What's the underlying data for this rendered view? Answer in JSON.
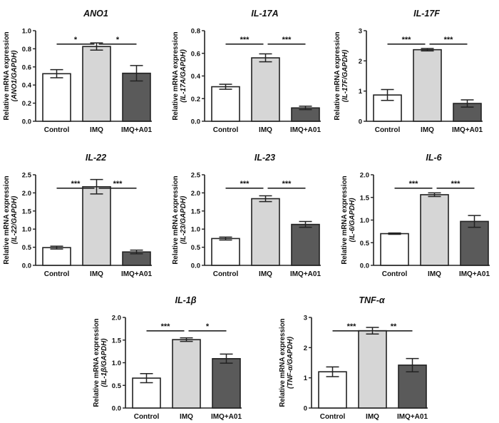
{
  "figure": {
    "categories": [
      "Control",
      "IMQ",
      "IMQ+A01"
    ],
    "bar_colors": [
      "#ffffff",
      "#d6d6d6",
      "#5a5a5a"
    ],
    "ylabel_line1": "Relative mRNA expression"
  },
  "chart_data": [
    {
      "type": "bar",
      "title": "ANO1",
      "ylabel": "Relative mRNA expression (ANO1/GAPDH)",
      "ylabel2": "(ANO1/GAPDH)",
      "categories": [
        "Control",
        "IMQ",
        "IMQ+A01"
      ],
      "values": [
        0.525,
        0.825,
        0.53
      ],
      "errors": [
        0.045,
        0.04,
        0.085
      ],
      "ylim": [
        0,
        1.0
      ],
      "yticks": [
        0.0,
        0.2,
        0.4,
        0.6,
        0.8,
        1.0
      ],
      "tick_labels": [
        "0.0",
        "0.2",
        "0.4",
        "0.6",
        "0.8",
        "1.0"
      ],
      "significance": [
        {
          "pair": [
            "Control",
            "IMQ"
          ],
          "label": "*"
        },
        {
          "pair": [
            "IMQ",
            "IMQ+A01"
          ],
          "label": "*"
        }
      ]
    },
    {
      "type": "bar",
      "title": "IL-17A",
      "ylabel": "Relative mRNA expression (IL-17A/GAPDH)",
      "ylabel2": "(IL-17A/GAPDH)",
      "categories": [
        "Control",
        "IMQ",
        "IMQ+A01"
      ],
      "values": [
        0.305,
        0.56,
        0.118
      ],
      "errors": [
        0.022,
        0.035,
        0.015
      ],
      "ylim": [
        0,
        0.8
      ],
      "yticks": [
        0.0,
        0.2,
        0.4,
        0.6,
        0.8
      ],
      "tick_labels": [
        "0.0",
        "0.2",
        "0.4",
        "0.6",
        "0.8"
      ],
      "significance": [
        {
          "pair": [
            "Control",
            "IMQ"
          ],
          "label": "***"
        },
        {
          "pair": [
            "IMQ",
            "IMQ+A01"
          ],
          "label": "***"
        }
      ]
    },
    {
      "type": "bar",
      "title": "IL-17F",
      "ylabel": "Relative mRNA expression (IL-17F/GAPDH)",
      "ylabel2": "(IL-17F/GAPDH)",
      "categories": [
        "Control",
        "IMQ",
        "IMQ+A01"
      ],
      "values": [
        0.87,
        2.37,
        0.59
      ],
      "errors": [
        0.18,
        0.04,
        0.12
      ],
      "ylim": [
        0,
        3
      ],
      "yticks": [
        0,
        1,
        2,
        3
      ],
      "tick_labels": [
        "0",
        "1",
        "2",
        "3"
      ],
      "significance": [
        {
          "pair": [
            "Control",
            "IMQ"
          ],
          "label": "***"
        },
        {
          "pair": [
            "IMQ",
            "IMQ+A01"
          ],
          "label": "***"
        }
      ]
    },
    {
      "type": "bar",
      "title": "IL-22",
      "ylabel": "Relative mRNA expression (IL-22/GAPDH)",
      "ylabel2": "(IL-22/GAPDH)",
      "categories": [
        "Control",
        "IMQ",
        "IMQ+A01"
      ],
      "values": [
        0.49,
        2.17,
        0.37
      ],
      "errors": [
        0.04,
        0.2,
        0.05
      ],
      "ylim": [
        0,
        2.5
      ],
      "yticks": [
        0.0,
        0.5,
        1.0,
        1.5,
        2.0,
        2.5
      ],
      "tick_labels": [
        "0.0",
        "0.5",
        "1.0",
        "1.5",
        "2.0",
        "2.5"
      ],
      "significance": [
        {
          "pair": [
            "Control",
            "IMQ"
          ],
          "label": "***"
        },
        {
          "pair": [
            "IMQ",
            "IMQ+A01"
          ],
          "label": "***"
        }
      ]
    },
    {
      "type": "bar",
      "title": "IL-23",
      "ylabel": "Relative mRNA expression (IL-23/GAPDH)",
      "ylabel2": "(IL-23/GAPDH)",
      "categories": [
        "Control",
        "IMQ",
        "IMQ+A01"
      ],
      "values": [
        0.74,
        1.84,
        1.13
      ],
      "errors": [
        0.04,
        0.08,
        0.08
      ],
      "ylim": [
        0,
        2.5
      ],
      "yticks": [
        0.0,
        0.5,
        1.0,
        1.5,
        2.0,
        2.5
      ],
      "tick_labels": [
        "0.0",
        "0.5",
        "1.0",
        "1.5",
        "2.0",
        "2.5"
      ],
      "significance": [
        {
          "pair": [
            "Control",
            "IMQ"
          ],
          "label": "***"
        },
        {
          "pair": [
            "IMQ",
            "IMQ+A01"
          ],
          "label": "***"
        }
      ]
    },
    {
      "type": "bar",
      "title": "IL-6",
      "ylabel": "Relative mRNA expression (IL-6/GAPDH)",
      "ylabel2": "(IL-6/GAPDH)",
      "categories": [
        "Control",
        "IMQ",
        "IMQ+A01"
      ],
      "values": [
        0.7,
        1.56,
        0.97
      ],
      "errors": [
        0.015,
        0.04,
        0.13
      ],
      "ylim": [
        0,
        2.0
      ],
      "yticks": [
        0.0,
        0.5,
        1.0,
        1.5,
        2.0
      ],
      "tick_labels": [
        "0.0",
        "0.5",
        "1.0",
        "1.5",
        "2.0"
      ],
      "significance": [
        {
          "pair": [
            "Control",
            "IMQ"
          ],
          "label": "***"
        },
        {
          "pair": [
            "IMQ",
            "IMQ+A01"
          ],
          "label": "***"
        }
      ]
    },
    {
      "type": "bar",
      "title": "IL-1β",
      "ylabel": "Relative mRNA expression (IL-1β/GAPDH)",
      "ylabel2": "(IL-1β/GAPDH)",
      "categories": [
        "Control",
        "IMQ",
        "IMQ+A01"
      ],
      "values": [
        0.66,
        1.51,
        1.09
      ],
      "errors": [
        0.1,
        0.04,
        0.1
      ],
      "ylim": [
        0,
        2.0
      ],
      "yticks": [
        0.0,
        0.5,
        1.0,
        1.5,
        2.0
      ],
      "tick_labels": [
        "0.0",
        "0.5",
        "1.0",
        "1.5",
        "2.0"
      ],
      "significance": [
        {
          "pair": [
            "Control",
            "IMQ"
          ],
          "label": "***"
        },
        {
          "pair": [
            "IMQ",
            "IMQ+A01"
          ],
          "label": "*"
        }
      ]
    },
    {
      "type": "bar",
      "title": "TNF-α",
      "ylabel": "Relative mRNA expression (TNF-α/GAPDH)",
      "ylabel2": "(TNF-α/GAPDH)",
      "categories": [
        "Control",
        "IMQ",
        "IMQ+A01"
      ],
      "values": [
        1.2,
        2.56,
        1.42
      ],
      "errors": [
        0.16,
        0.11,
        0.22
      ],
      "ylim": [
        0,
        3
      ],
      "yticks": [
        0,
        1,
        2,
        3
      ],
      "tick_labels": [
        "0",
        "1",
        "2",
        "3"
      ],
      "significance": [
        {
          "pair": [
            "Control",
            "IMQ"
          ],
          "label": "***"
        },
        {
          "pair": [
            "IMQ",
            "IMQ+A01"
          ],
          "label": "**"
        }
      ]
    }
  ]
}
